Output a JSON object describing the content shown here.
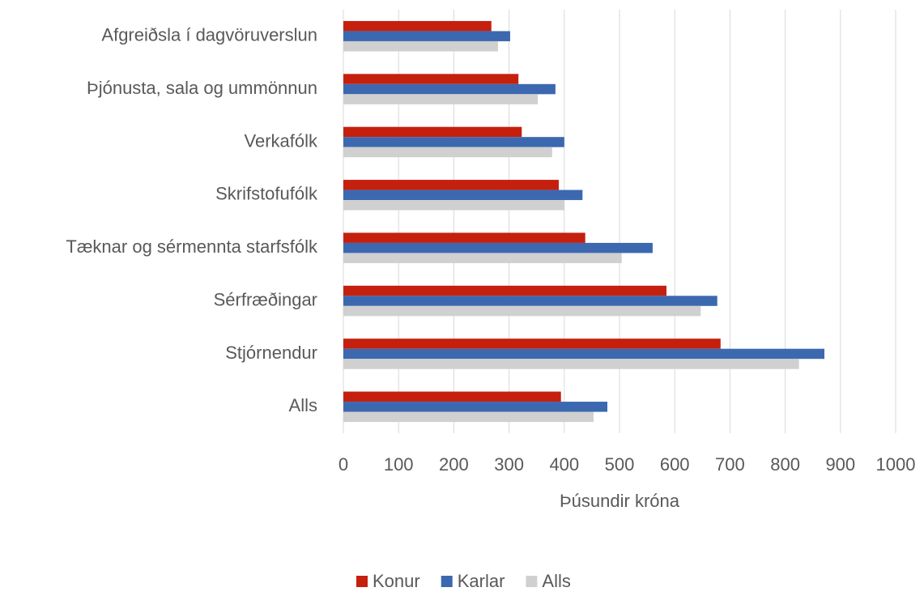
{
  "chart_data": {
    "type": "bar",
    "orientation": "horizontal",
    "categories": [
      "Afgreiðsla í dagvöruverslun",
      "Þjónusta, sala og ummönnun",
      "Verkafólk",
      "Skrifstofufólk",
      "Tæknar og sérmennta starfsfólk",
      "Sérfræðingar",
      "Stjórnendur",
      "Alls"
    ],
    "series": [
      {
        "name": "Konur",
        "color": "#c5200e",
        "values": [
          268,
          317,
          323,
          390,
          438,
          585,
          683,
          394
        ]
      },
      {
        "name": "Karlar",
        "color": "#3c68b0",
        "values": [
          302,
          384,
          400,
          433,
          560,
          677,
          871,
          478
        ]
      },
      {
        "name": "Alls",
        "color": "#d0d0d0",
        "values": [
          280,
          352,
          378,
          400,
          504,
          647,
          825,
          453
        ]
      }
    ],
    "xlabel": "Þúsundir króna",
    "xlim": [
      0,
      1000
    ],
    "xticks": [
      0,
      100,
      200,
      300,
      400,
      500,
      600,
      700,
      800,
      900,
      1000
    ],
    "grid": true,
    "legend": "bottom"
  }
}
